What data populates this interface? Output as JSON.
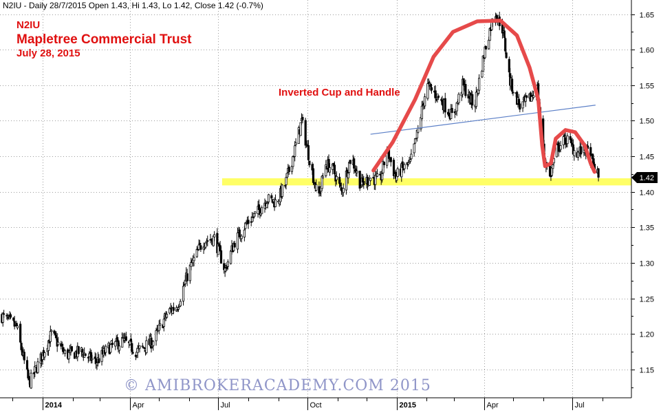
{
  "header": {
    "info": "N2IU - Daily 28/7/2015 Open 1.43, Hi 1.43, Lo 1.42, Close 1.42 (-0.7%)",
    "ticker": "N2IU",
    "title": "Mapletree Commercial Trust",
    "date": "July 28, 2015"
  },
  "annotation": "Inverted Cup and Handle",
  "watermark": "© AMIBROKERACADEMY.COM 2015",
  "colors": {
    "candles": "#000000",
    "cup": "#e64a4a",
    "support": "#ffff66",
    "neckline": "#5b7fc7",
    "grid": "#9a9a9a",
    "text_red": "#e01010",
    "last_price_bg": "#000000"
  },
  "chart_data": {
    "type": "line",
    "title": "Mapletree Commercial Trust",
    "ylim": [
      1.11,
      1.67
    ],
    "y_ticks": [
      "1.65",
      "1.60",
      "1.55",
      "1.50",
      "1.45",
      "1.40",
      "1.35",
      "1.30",
      "1.25",
      "1.20",
      "1.15"
    ],
    "x_ticks": [
      {
        "label": "2014",
        "date": "2014-01-01",
        "bold": true
      },
      {
        "label": "Apr",
        "date": "2014-04-01",
        "bold": false
      },
      {
        "label": "Jul",
        "date": "2014-07-01",
        "bold": false
      },
      {
        "label": "Oct",
        "date": "2014-10-01",
        "bold": false
      },
      {
        "label": "2015",
        "date": "2015-01-01",
        "bold": true
      },
      {
        "label": "Apr",
        "date": "2015-04-01",
        "bold": false
      },
      {
        "label": "Jul",
        "date": "2015-07-01",
        "bold": false
      }
    ],
    "x_range": [
      "2013-11-18",
      "2015-08-31"
    ],
    "last_price": "1.42",
    "series": [
      {
        "values_keypoints": [
          [
            "2013-11-20",
            1.225
          ],
          [
            "2013-12-05",
            1.21
          ],
          [
            "2013-12-18",
            1.13
          ],
          [
            "2013-12-30",
            1.165
          ],
          [
            "2014-01-10",
            1.2
          ],
          [
            "2014-01-25",
            1.17
          ],
          [
            "2014-02-10",
            1.175
          ],
          [
            "2014-02-25",
            1.16
          ],
          [
            "2014-03-10",
            1.18
          ],
          [
            "2014-03-25",
            1.19
          ],
          [
            "2014-04-08",
            1.175
          ],
          [
            "2014-04-25",
            1.19
          ],
          [
            "2014-05-10",
            1.23
          ],
          [
            "2014-05-20",
            1.24
          ],
          [
            "2014-06-01",
            1.29
          ],
          [
            "2014-06-15",
            1.33
          ],
          [
            "2014-06-27",
            1.335
          ],
          [
            "2014-07-08",
            1.29
          ],
          [
            "2014-07-18",
            1.33
          ],
          [
            "2014-07-30",
            1.355
          ],
          [
            "2014-08-10",
            1.37
          ],
          [
            "2014-08-20",
            1.39
          ],
          [
            "2014-08-30",
            1.385
          ],
          [
            "2014-09-08",
            1.41
          ],
          [
            "2014-09-18",
            1.46
          ],
          [
            "2014-09-25",
            1.5
          ],
          [
            "2014-10-04",
            1.44
          ],
          [
            "2014-10-12",
            1.39
          ],
          [
            "2014-10-20",
            1.44
          ],
          [
            "2014-10-28",
            1.43
          ],
          [
            "2014-11-05",
            1.4
          ],
          [
            "2014-11-15",
            1.45
          ],
          [
            "2014-11-25",
            1.41
          ],
          [
            "2014-12-05",
            1.42
          ],
          [
            "2014-12-15",
            1.415
          ],
          [
            "2014-12-22",
            1.46
          ],
          [
            "2014-12-31",
            1.42
          ],
          [
            "2015-01-05",
            1.43
          ],
          [
            "2015-01-15",
            1.44
          ],
          [
            "2015-01-22",
            1.48
          ],
          [
            "2015-02-01",
            1.55
          ],
          [
            "2015-02-15",
            1.53
          ],
          [
            "2015-02-28",
            1.505
          ],
          [
            "2015-03-10",
            1.55
          ],
          [
            "2015-03-22",
            1.52
          ],
          [
            "2015-04-02",
            1.6
          ],
          [
            "2015-04-12",
            1.655
          ],
          [
            "2015-04-20",
            1.63
          ],
          [
            "2015-04-28",
            1.555
          ],
          [
            "2015-05-08",
            1.52
          ],
          [
            "2015-05-18",
            1.53
          ],
          [
            "2015-05-26",
            1.545
          ],
          [
            "2015-06-02",
            1.45
          ],
          [
            "2015-06-08",
            1.42
          ],
          [
            "2015-06-15",
            1.46
          ],
          [
            "2015-06-25",
            1.475
          ],
          [
            "2015-07-05",
            1.455
          ],
          [
            "2015-07-15",
            1.46
          ],
          [
            "2015-07-22",
            1.44
          ],
          [
            "2015-07-28",
            1.42
          ]
        ]
      }
    ]
  }
}
